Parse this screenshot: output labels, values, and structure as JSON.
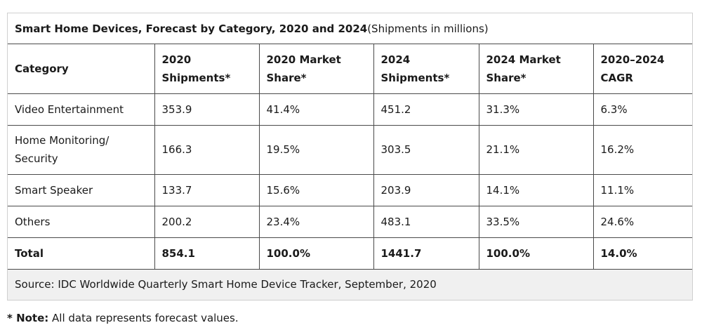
{
  "table": {
    "caption_bold": "Smart Home Devices, Forecast by Category, 2020 and 2024",
    "caption_normal": " (Shipments in millions)",
    "headers": [
      [
        "Category"
      ],
      [
        "2020",
        "Shipments*"
      ],
      [
        "2020 Market",
        "Share*"
      ],
      [
        "2024",
        "Shipments*"
      ],
      [
        "2024 Market",
        "Share*"
      ],
      [
        "2020–2024",
        "CAGR"
      ]
    ],
    "rows": [
      {
        "category": [
          "Video Entertainment"
        ],
        "s2020": "353.9",
        "m2020": "41.4%",
        "s2024": "451.2",
        "m2024": "31.3%",
        "cagr": "6.3%"
      },
      {
        "category": [
          "Home Monitoring/",
          "Security"
        ],
        "s2020": "166.3",
        "m2020": "19.5%",
        "s2024": "303.5",
        "m2024": "21.1%",
        "cagr": "16.2%"
      },
      {
        "category": [
          "Smart Speaker"
        ],
        "s2020": "133.7",
        "m2020": "15.6%",
        "s2024": "203.9",
        "m2024": "14.1%",
        "cagr": "11.1%"
      },
      {
        "category": [
          "Others"
        ],
        "s2020": "200.2",
        "m2020": "23.4%",
        "s2024": "483.1",
        "m2024": "33.5%",
        "cagr": "24.6%"
      }
    ],
    "total": {
      "category": "Total",
      "s2020": "854.1",
      "m2020": "100.0%",
      "s2024": "1441.7",
      "m2024": "100.0%",
      "cagr": "14.0%"
    },
    "source": "Source: IDC Worldwide Quarterly Smart Home Device Tracker, September, 2020"
  },
  "note": {
    "label": "* Note:",
    "text": " All data represents forecast values."
  },
  "colors": {
    "border": "#4a4a4a",
    "source_bg": "#f0f0f0",
    "text": "#1a1a1a"
  }
}
